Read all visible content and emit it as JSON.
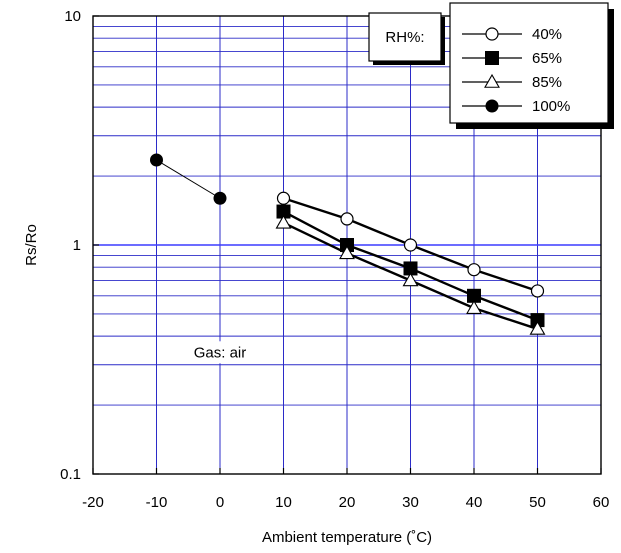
{
  "chart_data": {
    "type": "line",
    "xlabel": "Ambient temperature (˚C)",
    "ylabel": "Rs/Ro",
    "xlim": [
      -20,
      60
    ],
    "ylim": [
      0.1,
      10
    ],
    "yscale": "log",
    "xticks": [
      -20,
      -10,
      0,
      10,
      20,
      30,
      40,
      50,
      60
    ],
    "yticks": [
      {
        "value": 0.1,
        "label": "0.1"
      },
      {
        "value": 1,
        "label": "1"
      },
      {
        "value": 10,
        "label": "10"
      }
    ],
    "grid": true,
    "legend_position": "top-right",
    "legend_title": "RH%:",
    "annotation": "Gas: air",
    "colors": {
      "grid": "#2b2bc8",
      "major_grid": "#3c3cff",
      "line": "#000000"
    },
    "series": [
      {
        "name": "40%",
        "marker": "circle-open",
        "x": [
          10,
          20,
          30,
          40,
          50
        ],
        "y": [
          1.6,
          1.3,
          1.0,
          0.78,
          0.63
        ]
      },
      {
        "name": "65%",
        "marker": "square-filled",
        "x": [
          10,
          20,
          30,
          40,
          50
        ],
        "y": [
          1.4,
          1.0,
          0.79,
          0.6,
          0.47
        ]
      },
      {
        "name": "85%",
        "marker": "triangle-open",
        "x": [
          10,
          20,
          30,
          40,
          50
        ],
        "y": [
          1.25,
          0.92,
          0.7,
          0.53,
          0.43
        ]
      },
      {
        "name": "100%",
        "marker": "circle-filled",
        "x": [
          -10,
          0
        ],
        "y": [
          2.35,
          1.6
        ]
      }
    ]
  }
}
